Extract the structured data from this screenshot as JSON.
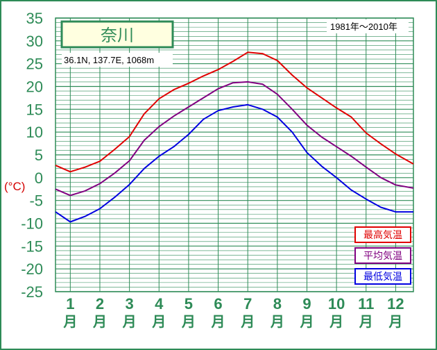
{
  "station": {
    "name": "奈川",
    "location": "36.1N,  137.7E,  1068m",
    "period": "1981年〜2010年"
  },
  "colors": {
    "frame_border": "#2e8b57",
    "grid": "#2e8b57",
    "axis_text": "#2e8b57",
    "max": "#e00000",
    "mean": "#800080",
    "min": "#0000e0",
    "title_bg": "#ffffe0",
    "unit_label": "#d40000"
  },
  "chart_data": {
    "type": "line",
    "ylabel": "(°C)",
    "ylim": [
      -25,
      35
    ],
    "yticks": [
      "35",
      "30",
      "25",
      "20",
      "15",
      "10",
      "5",
      "0",
      "-5",
      "-10",
      "-15",
      "-20",
      "-25"
    ],
    "xlim": [
      0.5,
      12.6
    ],
    "categories": [
      "1",
      "2",
      "3",
      "4",
      "5",
      "6",
      "7",
      "8",
      "9",
      "10",
      "11",
      "12"
    ],
    "category_unit": "月",
    "grid": true,
    "legend_position": "bottom-right",
    "x": [
      0.5,
      1.0,
      1.5,
      2.0,
      2.5,
      3.0,
      3.5,
      4.0,
      4.5,
      5.0,
      5.5,
      6.0,
      6.5,
      7.0,
      7.5,
      8.0,
      8.5,
      9.0,
      9.5,
      10.0,
      10.5,
      11.0,
      11.5,
      12.0,
      12.6
    ],
    "series": [
      {
        "name": "最高気温",
        "color_key": "max",
        "values": [
          2.7,
          1.3,
          2.3,
          3.6,
          6.2,
          9.0,
          14.0,
          17.3,
          19.3,
          20.7,
          22.3,
          23.7,
          25.5,
          27.5,
          27.2,
          25.7,
          22.5,
          19.7,
          17.5,
          15.3,
          13.3,
          9.8,
          7.4,
          5.2,
          3.0
        ]
      },
      {
        "name": "平均気温",
        "color_key": "mean",
        "values": [
          -2.5,
          -3.9,
          -2.9,
          -1.3,
          1.0,
          3.7,
          8.2,
          11.2,
          13.5,
          15.5,
          17.5,
          19.5,
          20.8,
          21.0,
          20.5,
          18.3,
          15.0,
          11.5,
          8.9,
          6.8,
          4.7,
          2.3,
          0.0,
          -1.6,
          -2.3
        ]
      },
      {
        "name": "最低気温",
        "color_key": "min",
        "values": [
          -7.5,
          -9.7,
          -8.5,
          -6.8,
          -4.3,
          -1.5,
          2.0,
          4.7,
          6.8,
          9.5,
          12.8,
          14.7,
          15.5,
          16.0,
          15.0,
          13.3,
          10.0,
          5.5,
          2.5,
          0.0,
          -2.7,
          -4.7,
          -6.5,
          -7.5,
          -7.5
        ]
      }
    ]
  }
}
